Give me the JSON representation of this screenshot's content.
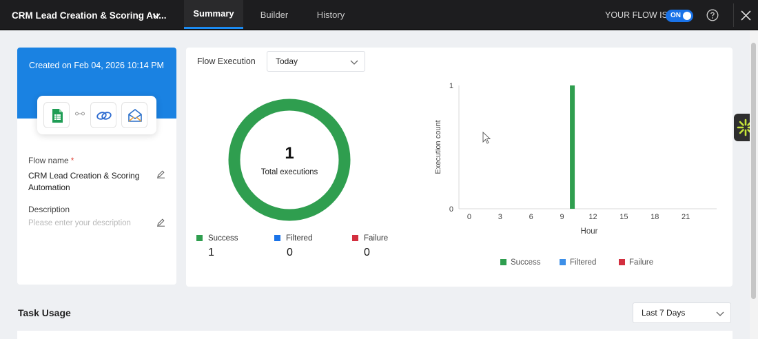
{
  "header": {
    "flow_title": "CRM Lead Creation & Scoring Au...",
    "tabs": [
      {
        "label": "Summary",
        "active": true
      },
      {
        "label": "Builder",
        "active": false
      },
      {
        "label": "History",
        "active": false
      }
    ],
    "flow_state_label": "YOUR FLOW IS",
    "toggle_label": "ON",
    "toggle_color": "#1a73e8"
  },
  "left_panel": {
    "created": "Created on Feb 04, 2026 10:14 PM",
    "apps": [
      "google-sheets-icon",
      "zoho-crm-icon",
      "email-parser-icon"
    ],
    "flow_name_label": "Flow name",
    "flow_name_required": "*",
    "flow_name_value": "CRM Lead Creation & Scoring Automation",
    "description_label": "Description",
    "description_placeholder": "Please enter your description",
    "header_color": "#1a82e2"
  },
  "flow_execution": {
    "label": "Flow Execution",
    "period": "Today",
    "total": "1",
    "total_label": "Total executions",
    "legend": [
      {
        "label": "Success",
        "value": "1",
        "color": "#2f9e4f"
      },
      {
        "label": "Filtered",
        "value": "0",
        "color": "#1a73e8"
      },
      {
        "label": "Failure",
        "value": "0",
        "color": "#d32f3f"
      }
    ]
  },
  "chart_data": {
    "type": "bar",
    "title": "",
    "xlabel": "Hour",
    "ylabel": "Execution count",
    "x_ticks": [
      "0",
      "3",
      "6",
      "9",
      "12",
      "15",
      "18",
      "21"
    ],
    "y_ticks": [
      "0",
      "1"
    ],
    "xlim": [
      -1,
      24
    ],
    "ylim": [
      0,
      1
    ],
    "series": [
      {
        "name": "Success",
        "color": "#2f9e4f",
        "x": [
          10
        ],
        "values": [
          1
        ]
      },
      {
        "name": "Filtered",
        "color": "#3d8fe8",
        "x": [],
        "values": []
      },
      {
        "name": "Failure",
        "color": "#d32f3f",
        "x": [],
        "values": []
      }
    ],
    "legend_position": "bottom"
  },
  "task_usage": {
    "title": "Task Usage",
    "period": "Last 7 Days"
  }
}
